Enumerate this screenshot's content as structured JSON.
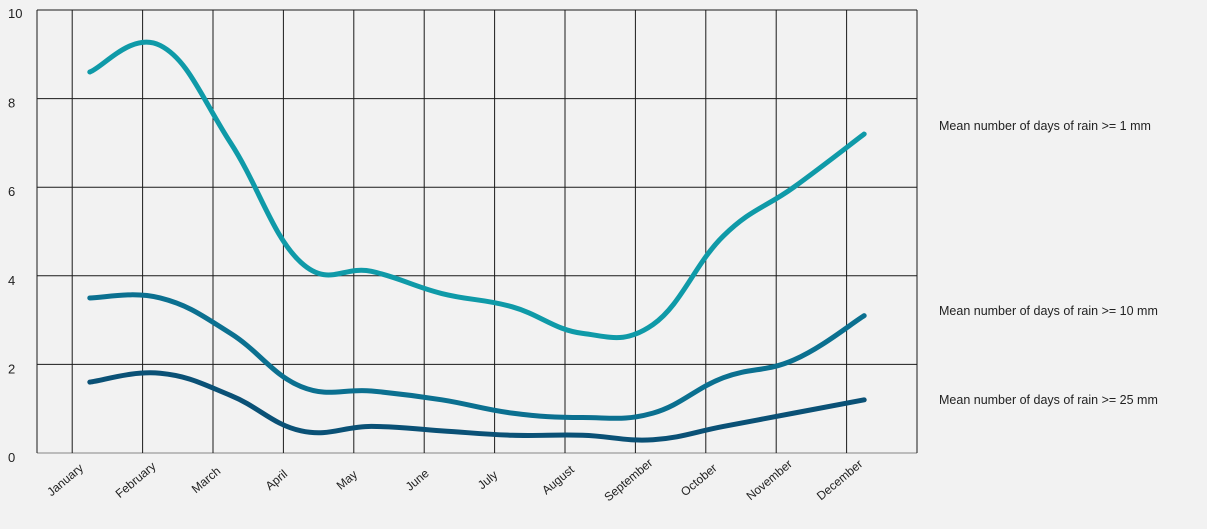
{
  "colors": {
    "background": "#f2f2f2",
    "grid": "#1a1a1a",
    "series": [
      "#0f9aa8",
      "#0b7090",
      "#0a5176"
    ]
  },
  "chart_data": {
    "type": "line",
    "title": "",
    "xlabel": "",
    "ylabel": "",
    "ylim": [
      0,
      10
    ],
    "yticks": [
      "0",
      "2",
      "4",
      "6",
      "8",
      "10"
    ],
    "grid": true,
    "legend": "right, labels placed beside line ends",
    "categories": [
      "January",
      "February",
      "March",
      "April",
      "May",
      "June",
      "July",
      "August",
      "September",
      "October",
      "November",
      "December"
    ],
    "series": [
      {
        "name": "Mean number of days of rain >= 1 mm",
        "values": [
          8.6,
          9.2,
          7.0,
          4.3,
          4.1,
          3.6,
          3.3,
          2.7,
          2.9,
          4.9,
          6.0,
          7.2
        ]
      },
      {
        "name": "Mean number of days of rain >= 10 mm",
        "values": [
          3.5,
          3.5,
          2.7,
          1.5,
          1.4,
          1.2,
          0.9,
          0.8,
          0.9,
          1.7,
          2.1,
          3.1
        ]
      },
      {
        "name": "Mean number of days of rain >= 25 mm",
        "values": [
          1.6,
          1.8,
          1.3,
          0.5,
          0.6,
          0.5,
          0.4,
          0.4,
          0.3,
          0.6,
          0.9,
          1.2
        ]
      }
    ]
  }
}
